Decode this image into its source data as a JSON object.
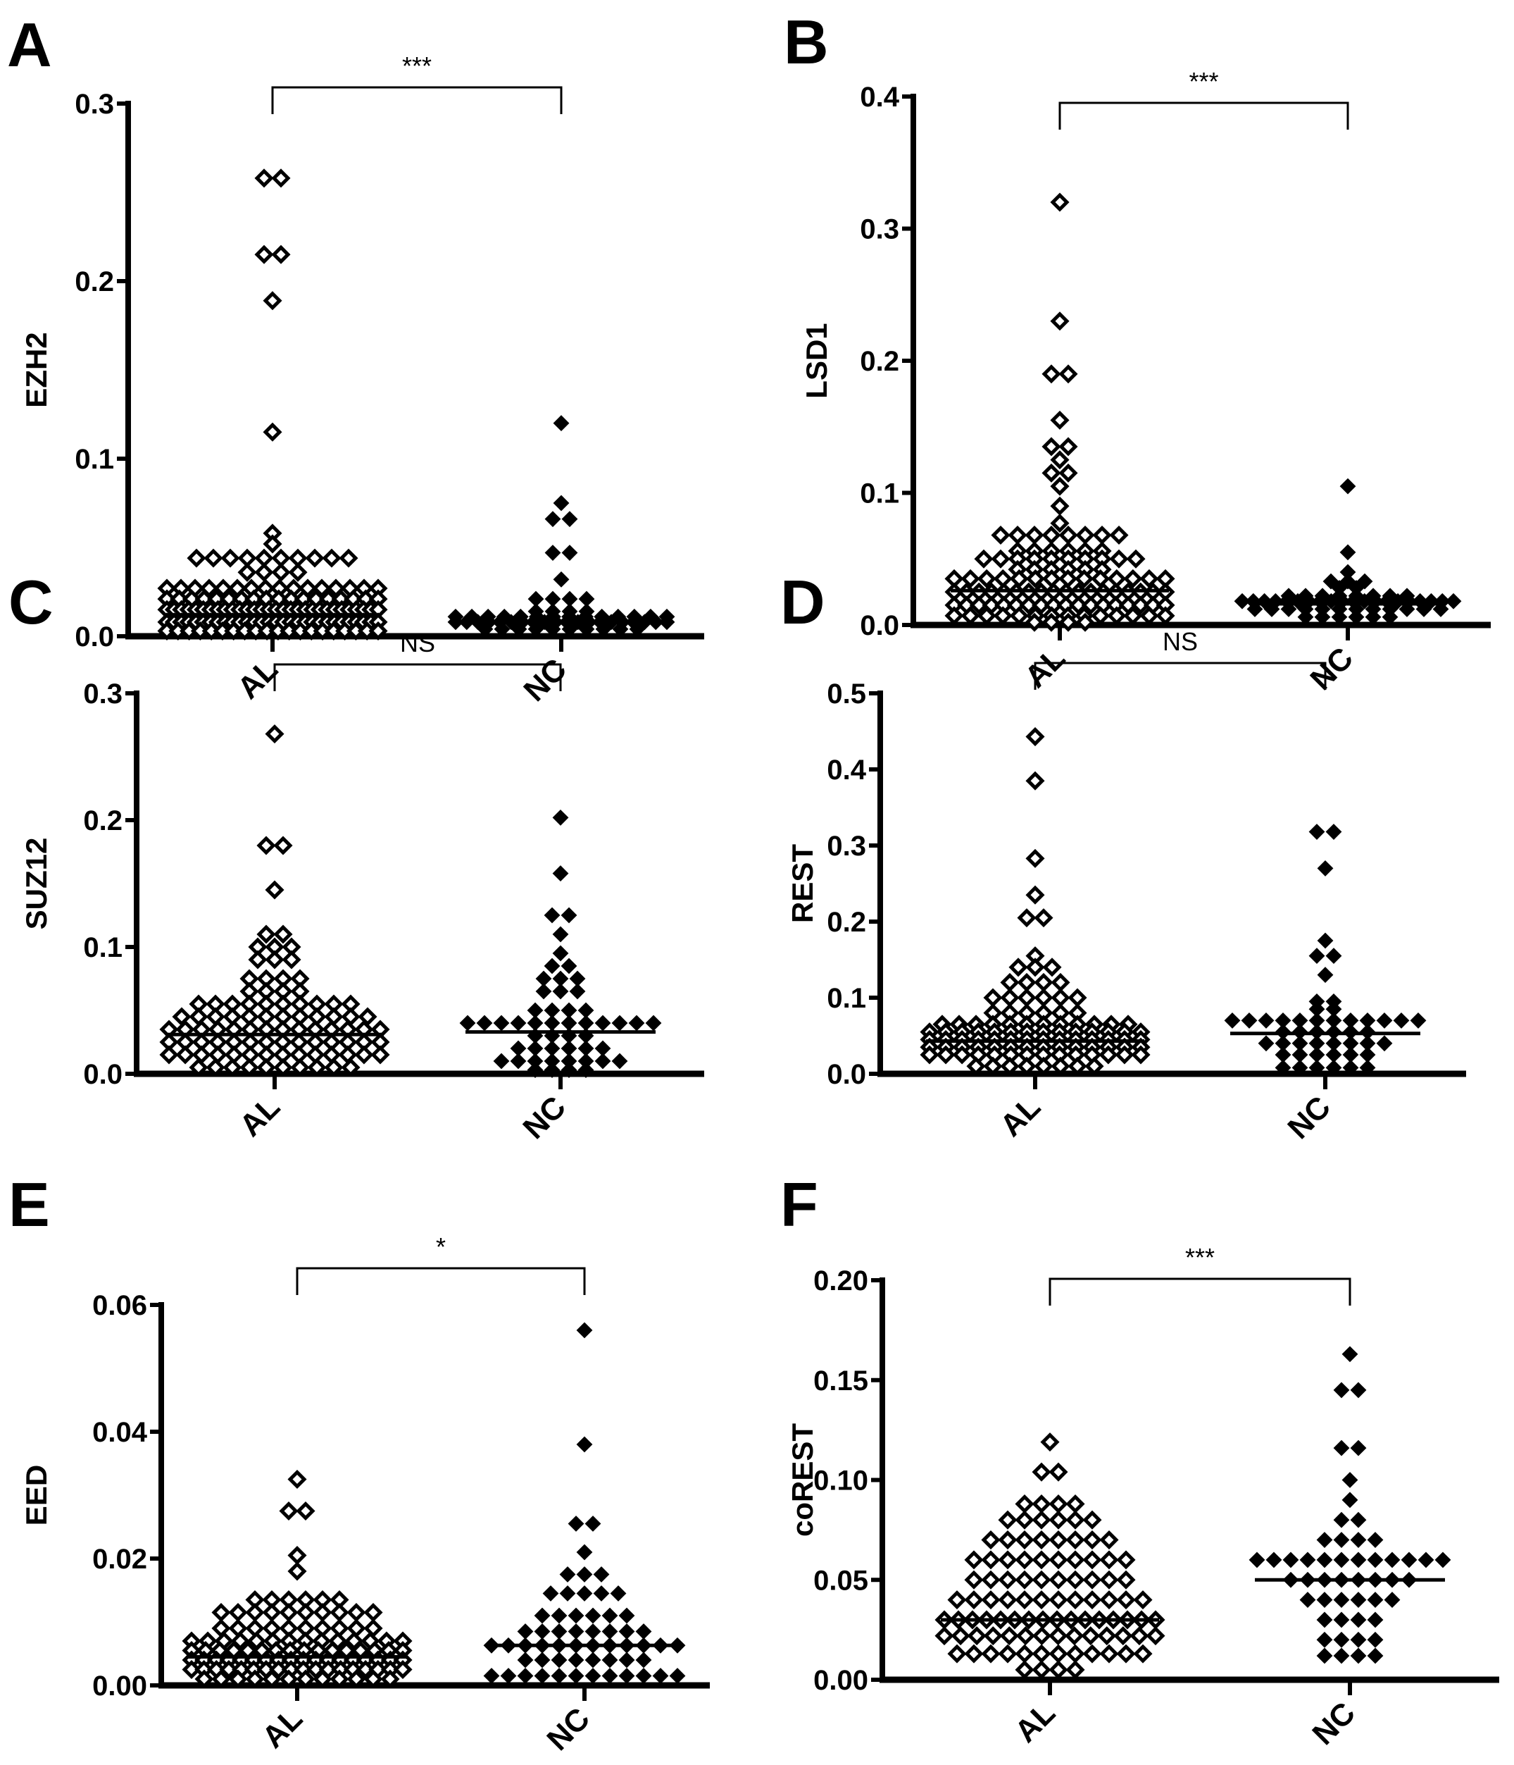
{
  "colors": {
    "marker_stroke": "#000000",
    "al_fill": "#ffffff",
    "nc_fill": "#000000",
    "background": "#ffffff"
  },
  "chart_data": [
    {
      "type": "scatter",
      "panel": "A",
      "ylabel": "EZH2",
      "ylim": [
        0,
        0.3
      ],
      "yticks": [
        "0.0",
        "0.1",
        "0.2",
        "0.3"
      ],
      "ytick_values": [
        0,
        0.1,
        0.2,
        0.3
      ],
      "categories": [
        "AL",
        "NC"
      ],
      "significance": "***",
      "series": [
        {
          "name": "AL",
          "marker": "open-diamond",
          "median": 0.012,
          "rows": [
            [
              0.258,
              2
            ],
            [
              0.215,
              2
            ],
            [
              0.189,
              1
            ],
            [
              0.115,
              1
            ],
            [
              0.058,
              1
            ],
            [
              0.052,
              1
            ],
            [
              0.044,
              10
            ],
            [
              0.036,
              4
            ],
            [
              0.027,
              16
            ],
            [
              0.021,
              18
            ],
            [
              0.015,
              30
            ],
            [
              0.008,
              30
            ],
            [
              0.003,
              20
            ]
          ]
        },
        {
          "name": "NC",
          "marker": "filled-diamond",
          "median": 0.008,
          "rows": [
            [
              0.12,
              1
            ],
            [
              0.075,
              1
            ],
            [
              0.066,
              2
            ],
            [
              0.047,
              2
            ],
            [
              0.032,
              1
            ],
            [
              0.021,
              4
            ],
            [
              0.014,
              4
            ],
            [
              0.011,
              14
            ],
            [
              0.008,
              20
            ],
            [
              0.004,
              10
            ]
          ]
        }
      ]
    },
    {
      "type": "scatter",
      "panel": "B",
      "ylabel": "LSD1",
      "ylim": [
        0,
        0.4
      ],
      "yticks": [
        "0.0",
        "0.1",
        "0.2",
        "0.3",
        "0.4"
      ],
      "ytick_values": [
        0,
        0.1,
        0.2,
        0.3,
        0.4
      ],
      "categories": [
        "AL",
        "NC"
      ],
      "significance": "***",
      "series": [
        {
          "name": "AL",
          "marker": "open-diamond",
          "median": 0.026,
          "rows": [
            [
              0.32,
              1
            ],
            [
              0.23,
              1
            ],
            [
              0.19,
              2
            ],
            [
              0.155,
              1
            ],
            [
              0.135,
              2
            ],
            [
              0.125,
              1
            ],
            [
              0.115,
              2
            ],
            [
              0.105,
              1
            ],
            [
              0.09,
              1
            ],
            [
              0.077,
              1
            ],
            [
              0.068,
              8
            ],
            [
              0.056,
              6
            ],
            [
              0.05,
              10
            ],
            [
              0.042,
              6
            ],
            [
              0.035,
              14
            ],
            [
              0.025,
              18
            ],
            [
              0.015,
              18
            ],
            [
              0.007,
              14
            ],
            [
              0.002,
              4
            ]
          ]
        },
        {
          "name": "NC",
          "marker": "filled-diamond",
          "median": 0.016,
          "rows": [
            [
              0.105,
              1
            ],
            [
              0.055,
              1
            ],
            [
              0.04,
              1
            ],
            [
              0.033,
              3
            ],
            [
              0.028,
              2
            ],
            [
              0.022,
              8
            ],
            [
              0.018,
              20
            ],
            [
              0.012,
              12
            ],
            [
              0.006,
              6
            ]
          ]
        }
      ]
    },
    {
      "type": "scatter",
      "panel": "C",
      "ylabel": "SUZ12",
      "ylim": [
        0,
        0.3
      ],
      "yticks": [
        "0.0",
        "0.1",
        "0.2",
        "0.3"
      ],
      "ytick_values": [
        0,
        0.1,
        0.2,
        0.3
      ],
      "categories": [
        "AL",
        "NC"
      ],
      "significance": "NS",
      "series": [
        {
          "name": "AL",
          "marker": "open-diamond",
          "median": 0.031,
          "rows": [
            [
              0.268,
              1
            ],
            [
              0.18,
              2
            ],
            [
              0.145,
              1
            ],
            [
              0.11,
              2
            ],
            [
              0.1,
              3
            ],
            [
              0.09,
              3
            ],
            [
              0.075,
              4
            ],
            [
              0.065,
              4
            ],
            [
              0.055,
              10
            ],
            [
              0.045,
              12
            ],
            [
              0.035,
              14
            ],
            [
              0.025,
              14
            ],
            [
              0.015,
              14
            ],
            [
              0.005,
              10
            ]
          ]
        },
        {
          "name": "NC",
          "marker": "filled-diamond",
          "median": 0.033,
          "rows": [
            [
              0.202,
              1
            ],
            [
              0.158,
              1
            ],
            [
              0.125,
              2
            ],
            [
              0.11,
              1
            ],
            [
              0.095,
              1
            ],
            [
              0.085,
              2
            ],
            [
              0.075,
              3
            ],
            [
              0.065,
              3
            ],
            [
              0.05,
              4
            ],
            [
              0.04,
              12
            ],
            [
              0.03,
              4
            ],
            [
              0.02,
              6
            ],
            [
              0.01,
              8
            ],
            [
              0.003,
              4
            ]
          ]
        }
      ]
    },
    {
      "type": "scatter",
      "panel": "D",
      "ylabel": "REST",
      "ylim": [
        0,
        0.5
      ],
      "yticks": [
        "0.0",
        "0.1",
        "0.2",
        "0.3",
        "0.4",
        "0.5"
      ],
      "ytick_values": [
        0,
        0.1,
        0.2,
        0.3,
        0.4,
        0.5
      ],
      "categories": [
        "AL",
        "NC"
      ],
      "significance": "NS",
      "series": [
        {
          "name": "AL",
          "marker": "open-diamond",
          "median": 0.043,
          "rows": [
            [
              0.443,
              1
            ],
            [
              0.385,
              1
            ],
            [
              0.283,
              1
            ],
            [
              0.235,
              1
            ],
            [
              0.205,
              2
            ],
            [
              0.155,
              1
            ],
            [
              0.14,
              3
            ],
            [
              0.12,
              4
            ],
            [
              0.1,
              6
            ],
            [
              0.08,
              6
            ],
            [
              0.065,
              12
            ],
            [
              0.055,
              14
            ],
            [
              0.045,
              14
            ],
            [
              0.035,
              14
            ],
            [
              0.025,
              14
            ],
            [
              0.01,
              8
            ]
          ]
        },
        {
          "name": "NC",
          "marker": "filled-diamond",
          "median": 0.053,
          "rows": [
            [
              0.318,
              2
            ],
            [
              0.27,
              1
            ],
            [
              0.175,
              1
            ],
            [
              0.155,
              2
            ],
            [
              0.13,
              1
            ],
            [
              0.095,
              2
            ],
            [
              0.085,
              2
            ],
            [
              0.07,
              12
            ],
            [
              0.055,
              6
            ],
            [
              0.04,
              8
            ],
            [
              0.025,
              6
            ],
            [
              0.008,
              6
            ]
          ]
        }
      ]
    },
    {
      "type": "scatter",
      "panel": "E",
      "ylabel": "EED",
      "ylim": [
        0,
        0.06
      ],
      "yticks": [
        "0.00",
        "0.02",
        "0.04",
        "0.06"
      ],
      "ytick_values": [
        0,
        0.02,
        0.04,
        0.06
      ],
      "categories": [
        "AL",
        "NC"
      ],
      "significance": "*",
      "series": [
        {
          "name": "AL",
          "marker": "open-diamond",
          "median": 0.0045,
          "rows": [
            [
              0.0325,
              1
            ],
            [
              0.0275,
              2
            ],
            [
              0.0205,
              1
            ],
            [
              0.018,
              1
            ],
            [
              0.0135,
              6
            ],
            [
              0.0115,
              10
            ],
            [
              0.009,
              10
            ],
            [
              0.007,
              14
            ],
            [
              0.0055,
              16
            ],
            [
              0.004,
              18
            ],
            [
              0.0025,
              18
            ],
            [
              0.001,
              12
            ]
          ]
        },
        {
          "name": "NC",
          "marker": "filled-diamond",
          "median": 0.0063,
          "rows": [
            [
              0.056,
              1
            ],
            [
              0.038,
              1
            ],
            [
              0.0255,
              2
            ],
            [
              0.021,
              1
            ],
            [
              0.0175,
              3
            ],
            [
              0.0145,
              5
            ],
            [
              0.011,
              6
            ],
            [
              0.0085,
              8
            ],
            [
              0.0063,
              12
            ],
            [
              0.004,
              8
            ],
            [
              0.0015,
              12
            ]
          ]
        }
      ]
    },
    {
      "type": "scatter",
      "panel": "F",
      "ylabel": "coREST",
      "ylim": [
        0,
        0.2
      ],
      "yticks": [
        "0.00",
        "0.05",
        "0.10",
        "0.15",
        "0.20"
      ],
      "ytick_values": [
        0,
        0.05,
        0.1,
        0.15,
        0.2
      ],
      "categories": [
        "AL",
        "NC"
      ],
      "significance": "***",
      "series": [
        {
          "name": "AL",
          "marker": "open-diamond",
          "median": 0.03,
          "rows": [
            [
              0.119,
              1
            ],
            [
              0.104,
              2
            ],
            [
              0.088,
              4
            ],
            [
              0.08,
              6
            ],
            [
              0.07,
              8
            ],
            [
              0.06,
              10
            ],
            [
              0.05,
              10
            ],
            [
              0.04,
              12
            ],
            [
              0.03,
              16
            ],
            [
              0.022,
              14
            ],
            [
              0.013,
              12
            ],
            [
              0.005,
              4
            ]
          ]
        },
        {
          "name": "NC",
          "marker": "filled-diamond",
          "median": 0.05,
          "rows": [
            [
              0.163,
              1
            ],
            [
              0.145,
              2
            ],
            [
              0.116,
              2
            ],
            [
              0.1,
              1
            ],
            [
              0.09,
              1
            ],
            [
              0.08,
              2
            ],
            [
              0.07,
              4
            ],
            [
              0.06,
              12
            ],
            [
              0.05,
              8
            ],
            [
              0.04,
              6
            ],
            [
              0.03,
              4
            ],
            [
              0.02,
              4
            ],
            [
              0.012,
              4
            ]
          ]
        }
      ]
    }
  ]
}
